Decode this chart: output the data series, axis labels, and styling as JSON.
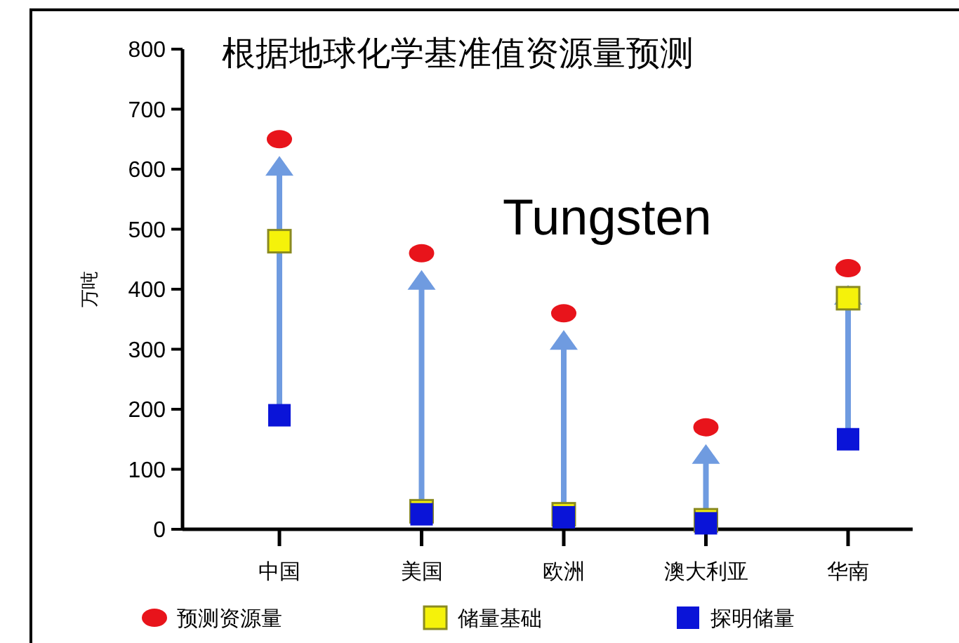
{
  "chart_data": {
    "type": "scatter",
    "title": "根据地球化学基准值资源量预测",
    "ylabel": "万吨",
    "annotations": [
      "Tungsten"
    ],
    "categories": [
      "中国",
      "美国",
      "欧洲",
      "澳大利亚",
      "华南"
    ],
    "ylim": [
      0,
      800
    ],
    "yticks": [
      0,
      100,
      200,
      300,
      400,
      500,
      600,
      700,
      800
    ],
    "grid": false,
    "legend": "bottom",
    "series": [
      {
        "name": "预测资源量",
        "color": "#e8141b",
        "marker": "circle",
        "values": [
          650,
          460,
          360,
          170,
          435
        ]
      },
      {
        "name": "储量基础",
        "color": "#f5f20a",
        "marker": "square",
        "values": [
          480,
          30,
          25,
          15,
          385
        ]
      },
      {
        "name": "探明储量",
        "color": "#0a14d8",
        "marker": "square",
        "values": [
          190,
          25,
          20,
          10,
          150
        ]
      }
    ]
  }
}
